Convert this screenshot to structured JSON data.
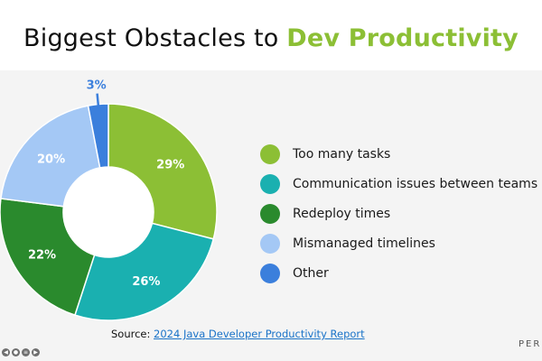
{
  "title": {
    "prefix": "Biggest Obstacles to ",
    "accent": "Dev Productivity"
  },
  "colors": {
    "accent": "#8cbf35",
    "background": "#f4f4f4"
  },
  "chart_data": {
    "type": "pie",
    "variant": "donut",
    "categories": [
      "Too many tasks",
      "Communication issues between teams",
      "Redeploy times",
      "Mismanaged timelines",
      "Other"
    ],
    "values": [
      29,
      26,
      22,
      20,
      3
    ],
    "value_labels": [
      "29%",
      "26%",
      "22%",
      "20%",
      "3%"
    ],
    "colors": [
      "#8cbf35",
      "#1ab0b0",
      "#2a8a2d",
      "#a4c8f5",
      "#3b7fdc"
    ],
    "legend_position": "right"
  },
  "source": {
    "prefix": "Source: ",
    "link_text": "2024 Java Developer Productivity Report"
  },
  "brand": "PER"
}
